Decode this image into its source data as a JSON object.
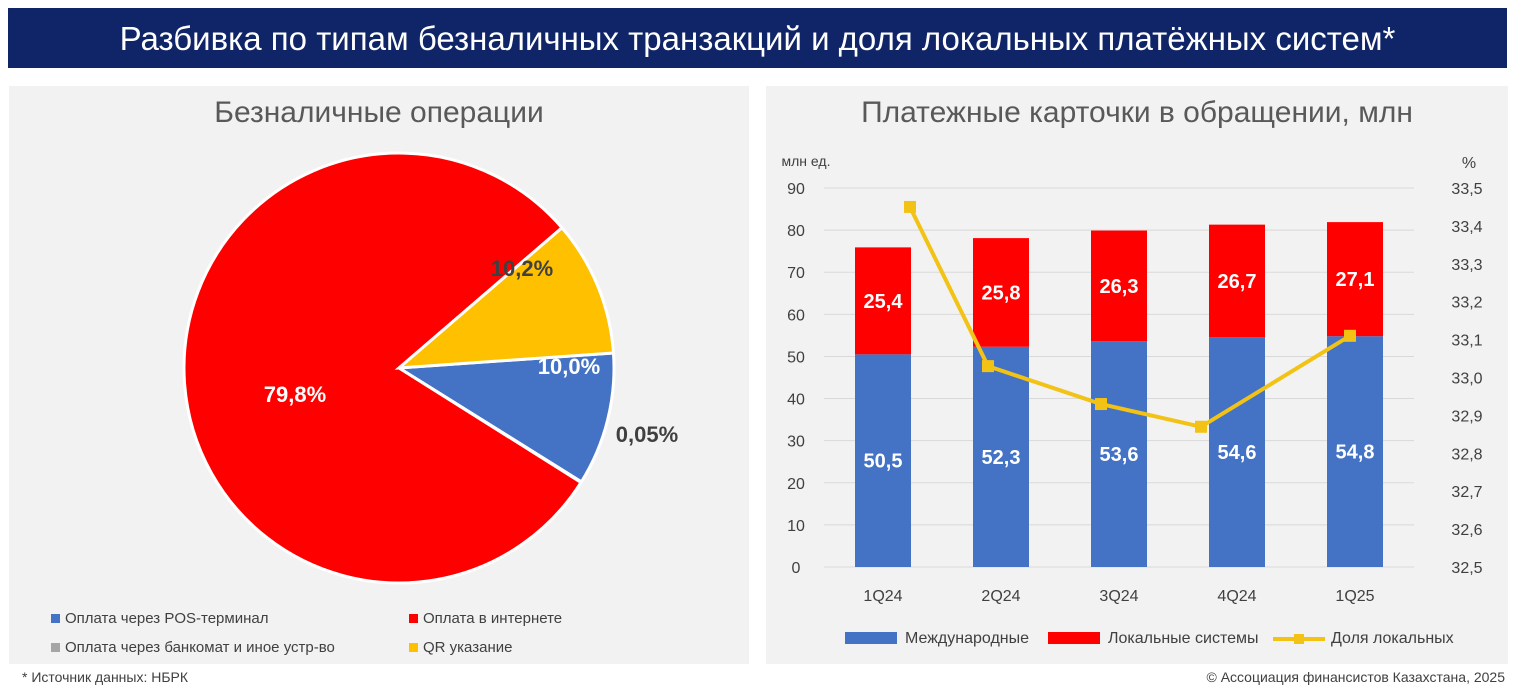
{
  "header": {
    "title": "Разбивка по типам безналичных транзакций и доля локальных платёжных систем*"
  },
  "colors": {
    "banner": "#0f2567",
    "pos": "#4472c4",
    "internet": "#ff0000",
    "atm": "#a5a5a5",
    "qr": "#ffc000",
    "line": "#f2c314"
  },
  "chart_data": [
    {
      "type": "pie",
      "title": "Безналичные операции",
      "slices": [
        {
          "name": "Оплата через POS-терминал",
          "value": 10.0,
          "label": "10,0%",
          "color": "#4472c4"
        },
        {
          "name": "Оплата через банкомат и иное устр-во",
          "value": 0.05,
          "label": "0,05%",
          "color": "#a5a5a5"
        },
        {
          "name": "Оплата в интернете",
          "value": 79.8,
          "label": "79,8%",
          "color": "#ff0000"
        },
        {
          "name": "QR указание",
          "value": 10.2,
          "label": "10,2%",
          "color": "#ffc000"
        }
      ],
      "legend": [
        {
          "name": "Оплата через POS-терминал",
          "color": "#4472c4"
        },
        {
          "name": "Оплата в интернете",
          "color": "#ff0000"
        },
        {
          "name": "Оплата через банкомат и иное устр-во",
          "color": "#a5a5a5"
        },
        {
          "name": "QR указание",
          "color": "#ffc000"
        }
      ]
    },
    {
      "type": "bar",
      "stacked": true,
      "title": "Платежные карточки в обращении, млн",
      "categories": [
        "1Q24",
        "2Q24",
        "3Q24",
        "4Q24",
        "1Q25"
      ],
      "ylabel": "млн ед.",
      "y2label": "%",
      "ylim": [
        0,
        90
      ],
      "yticks": [
        0,
        10,
        20,
        30,
        40,
        50,
        60,
        70,
        80,
        90
      ],
      "y2lim": [
        32.5,
        33.5
      ],
      "y2ticks": [
        "32,5",
        "32,6",
        "32,7",
        "32,8",
        "32,9",
        "33,0",
        "33,1",
        "33,2",
        "33,3",
        "33,4",
        "33,5"
      ],
      "series": [
        {
          "name": "Международные",
          "values": [
            50.5,
            52.3,
            53.6,
            54.6,
            54.8
          ],
          "labels": [
            "50,5",
            "52,3",
            "53,6",
            "54,6",
            "54,8"
          ],
          "color": "#4472c4"
        },
        {
          "name": "Локальные системы",
          "values": [
            25.4,
            25.8,
            26.3,
            26.7,
            27.1
          ],
          "labels": [
            "25,4",
            "25,8",
            "26,3",
            "26,7",
            "27,1"
          ],
          "color": "#ff0000"
        },
        {
          "name": "Доля локальных",
          "type": "line",
          "axis": "right",
          "values": [
            33.45,
            33.03,
            32.93,
            32.87,
            33.11
          ],
          "color": "#f2c314"
        }
      ]
    }
  ],
  "footer": {
    "source": "* Источник данных: НБРК",
    "copyright": "© Ассоциация финансистов Казахстана, 2025"
  }
}
